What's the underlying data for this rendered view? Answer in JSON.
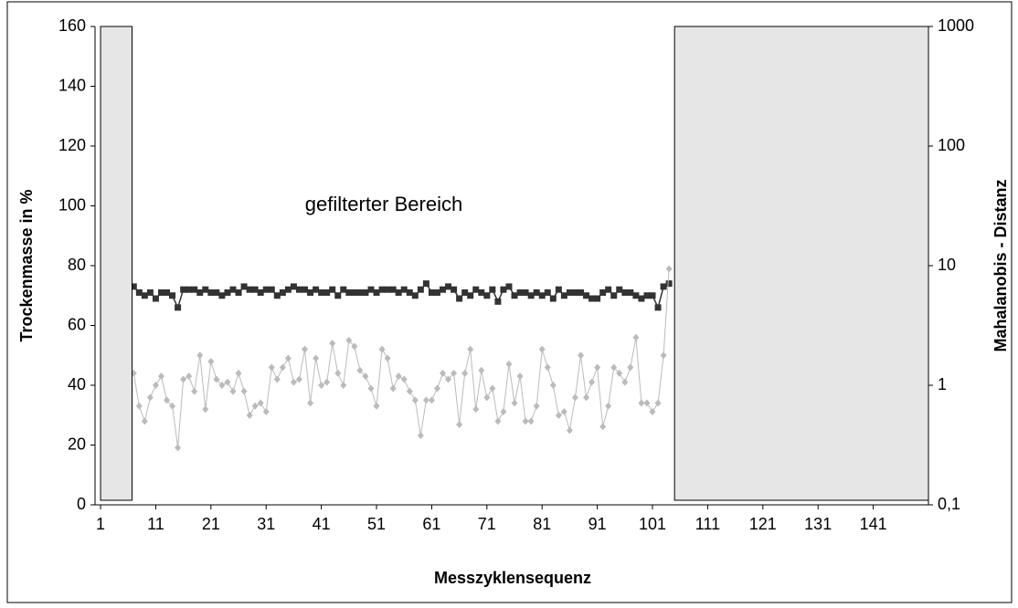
{
  "chart_data": {
    "type": "line",
    "x_label": "Messzyklensequenz",
    "y_label": "Trockenmasse in %",
    "y2_label": "Mahalanobis - Distanz",
    "annotation": "gefilterter Bereich",
    "filtered_ranges": [
      [
        1,
        6.7
      ],
      [
        105,
        151
      ]
    ],
    "x": [
      7,
      8,
      9,
      10,
      11,
      12,
      13,
      14,
      15,
      16,
      17,
      18,
      19,
      20,
      21,
      22,
      23,
      24,
      25,
      26,
      27,
      28,
      29,
      30,
      31,
      32,
      33,
      34,
      35,
      36,
      37,
      38,
      39,
      40,
      41,
      42,
      43,
      44,
      45,
      46,
      47,
      48,
      49,
      50,
      51,
      52,
      53,
      54,
      55,
      56,
      57,
      58,
      59,
      60,
      61,
      62,
      63,
      64,
      65,
      66,
      67,
      68,
      69,
      70,
      71,
      72,
      73,
      74,
      75,
      76,
      77,
      78,
      79,
      80,
      81,
      82,
      83,
      84,
      85,
      86,
      87,
      88,
      89,
      90,
      91,
      92,
      93,
      94,
      95,
      96,
      97,
      98,
      99,
      100,
      101,
      102,
      103,
      104
    ],
    "series": [
      {
        "color": "#333333",
        "marker": "square",
        "values": [
          73,
          71,
          70,
          71,
          69,
          71,
          71,
          70,
          66,
          72,
          72,
          72,
          71,
          72,
          71,
          71,
          70,
          71,
          72,
          71,
          73,
          72,
          72,
          71,
          72,
          72,
          70,
          71,
          72,
          73,
          72,
          72,
          71,
          72,
          71,
          71,
          72,
          70,
          72,
          71,
          71,
          71,
          71,
          72,
          71,
          72,
          72,
          72,
          71,
          72,
          71,
          70,
          72,
          74,
          71,
          71,
          72,
          73,
          72,
          69,
          71,
          70,
          72,
          71,
          70,
          72,
          68,
          72,
          73,
          70,
          71,
          71,
          70,
          71,
          70,
          71,
          69,
          72,
          70,
          71,
          71,
          71,
          70,
          69,
          69,
          71,
          72,
          70,
          72,
          71,
          71,
          70,
          69,
          70,
          70,
          66,
          73,
          74
        ]
      },
      {
        "color": "#bbbbbb",
        "marker": "diamond",
        "axis": "y2",
        "values": [
          1.26,
          0.67,
          0.5,
          0.79,
          1.0,
          1.19,
          0.75,
          0.67,
          0.3,
          1.12,
          1.19,
          0.89,
          1.78,
          0.63,
          1.58,
          1.12,
          1.0,
          1.06,
          0.89,
          1.26,
          0.89,
          0.56,
          0.67,
          0.71,
          0.6,
          1.41,
          1.12,
          1.41,
          1.68,
          1.06,
          1.12,
          2.0,
          0.71,
          1.68,
          1.0,
          1.06,
          2.24,
          1.26,
          1.0,
          2.37,
          2.11,
          1.33,
          1.19,
          0.94,
          0.67,
          2.0,
          1.68,
          0.94,
          1.19,
          1.12,
          0.89,
          0.75,
          0.38,
          0.75,
          0.75,
          0.94,
          1.26,
          1.12,
          1.26,
          0.47,
          1.26,
          2.0,
          0.63,
          1.33,
          0.79,
          0.94,
          0.5,
          0.6,
          1.5,
          0.71,
          1.19,
          0.5,
          0.5,
          0.67,
          2.0,
          1.41,
          1.0,
          0.56,
          0.6,
          0.42,
          0.79,
          1.78,
          0.79,
          1.06,
          1.41,
          0.45,
          0.67,
          1.41,
          1.26,
          1.06,
          1.41,
          2.51,
          0.71,
          0.71,
          0.6,
          0.71,
          1.78,
          9.4
        ]
      }
    ],
    "xlim": [
      0,
      151
    ],
    "xticks": [
      1,
      11,
      21,
      31,
      41,
      51,
      61,
      71,
      81,
      91,
      101,
      111,
      121,
      131,
      141
    ],
    "ylim": [
      0,
      160
    ],
    "yticks": [
      0,
      20,
      40,
      60,
      80,
      100,
      120,
      140,
      160
    ],
    "y2lim": [
      0.1,
      1000
    ],
    "y2ticks": [
      {
        "value": 0.1,
        "label": "0,1"
      },
      1,
      10,
      100,
      1000
    ],
    "y2log": true
  }
}
